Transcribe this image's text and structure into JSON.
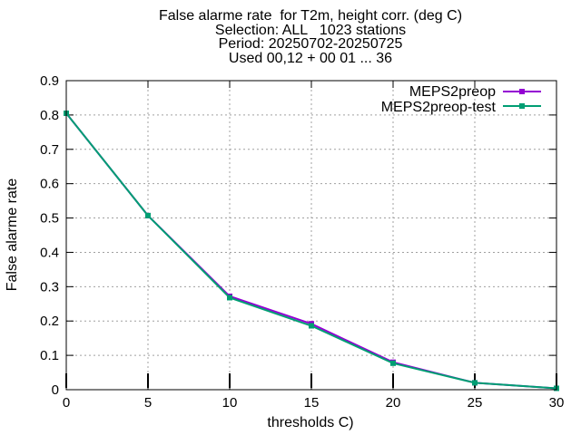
{
  "chart_data": {
    "type": "line",
    "title_lines": [
      "False alarme rate  for T2m, height corr. (deg C)",
      "Selection: ALL   1023 stations",
      "Period: 20250702-20250725",
      "Used 00,12 + 00 01 ... 36"
    ],
    "xlabel": "thresholds C)",
    "ylabel": "False alarme rate",
    "xlim": [
      0,
      30
    ],
    "ylim": [
      0,
      0.9
    ],
    "xticks": [
      0,
      5,
      10,
      15,
      20,
      25,
      30
    ],
    "yticks": [
      0,
      0.1,
      0.2,
      0.3,
      0.4,
      0.5,
      0.6,
      0.7,
      0.8,
      0.9
    ],
    "grid": true,
    "legend_position": "top-right",
    "x": [
      0,
      5,
      10,
      15,
      20,
      25,
      30
    ],
    "series": [
      {
        "name": "MEPS2preop",
        "color": "#9400d3",
        "values": [
          0.805,
          0.507,
          0.272,
          0.192,
          0.08,
          0.02,
          0.004
        ]
      },
      {
        "name": "MEPS2preop-test",
        "color": "#009e73",
        "values": [
          0.805,
          0.507,
          0.268,
          0.186,
          0.077,
          0.02,
          0.004
        ]
      }
    ],
    "error_bar_x": [
      0,
      5,
      10,
      15,
      20,
      25,
      30
    ]
  }
}
